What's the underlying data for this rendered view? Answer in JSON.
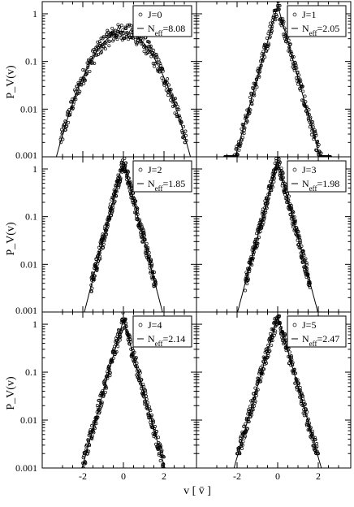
{
  "chart_data": {
    "type": "scatter",
    "layout": "3 rows x 2 columns of panels sharing axes",
    "xlabel": "v [ v̄ ]",
    "ylabel": "P_V(v)",
    "xlim": [
      -4,
      3.6
    ],
    "ylim": [
      0.001,
      1.8
    ],
    "yscale": "log",
    "x_ticks": [
      "-2",
      "0",
      "2"
    ],
    "y_ticks": [
      "1",
      "0.1",
      "0.01",
      "0.001"
    ],
    "legend_placement": "top-right",
    "panels": [
      {
        "J": "J=0",
        "N_eff": "8.08",
        "shape": "gaussian",
        "peak": 0.42,
        "sigma": 0.95,
        "halfwidth": 3.1,
        "floor": 0.002
      },
      {
        "J": "J=1",
        "N_eff": "2.05",
        "shape": "laplace",
        "peak": 1.5,
        "slope": 3.5,
        "halfwidth": 2.6,
        "floor": 0.001
      },
      {
        "J": "J=2",
        "N_eff": "1.85",
        "shape": "laplace",
        "peak": 1.5,
        "slope": 3.8,
        "halfwidth": 1.6,
        "floor": 0.001
      },
      {
        "J": "J=3",
        "N_eff": "1.98",
        "shape": "laplace",
        "peak": 1.5,
        "slope": 3.7,
        "halfwidth": 1.6,
        "floor": 0.001
      },
      {
        "J": "J=4",
        "N_eff": "2.14",
        "shape": "laplace",
        "peak": 1.25,
        "slope": 3.5,
        "halfwidth": 2.0,
        "floor": 0.001
      },
      {
        "J": "J=5",
        "N_eff": "2.47",
        "shape": "laplace",
        "peak": 1.5,
        "slope": 3.4,
        "halfwidth": 2.0,
        "floor": 0.002
      }
    ]
  }
}
